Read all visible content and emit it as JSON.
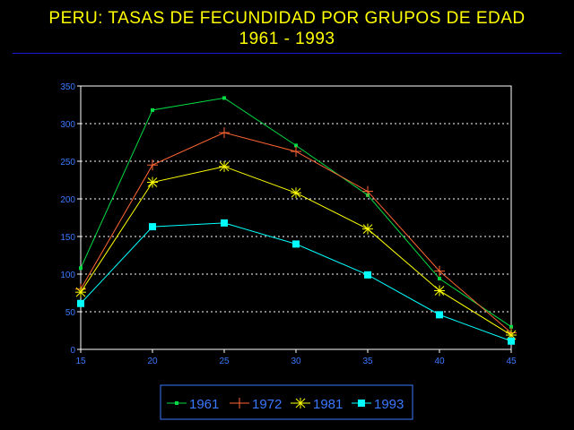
{
  "title": {
    "line1": "PERU: TASAS DE FECUNDIDAD POR GRUPOS DE EDAD",
    "line2": "1961 - 1993"
  },
  "colors": {
    "title": "#ffff00",
    "axis_text": "#3a78ff",
    "separator": "#1a1ad6",
    "grid": "#ffffff"
  },
  "chart_data": {
    "type": "line",
    "title": "PERU: TASAS DE FECUNDIDAD POR GRUPOS DE EDAD 1961 - 1993",
    "xlabel": "",
    "ylabel": "",
    "x": [
      15,
      20,
      25,
      30,
      35,
      40,
      45
    ],
    "xlim": [
      15,
      45
    ],
    "ylim": [
      0,
      350
    ],
    "yticks": [
      0,
      50,
      100,
      150,
      200,
      250,
      300,
      350
    ],
    "grid": "horizontal dotted",
    "legend_position": "bottom-center",
    "series": [
      {
        "name": "1961",
        "color": "#00dd44",
        "marker": "small-square",
        "values": [
          108,
          318,
          334,
          271,
          205,
          94,
          30
        ]
      },
      {
        "name": "1972",
        "color": "#ff6633",
        "marker": "plus",
        "values": [
          80,
          245,
          288,
          263,
          210,
          104,
          22
        ]
      },
      {
        "name": "1981",
        "color": "#ffff00",
        "marker": "asterisk",
        "values": [
          76,
          222,
          243,
          208,
          160,
          78,
          19
        ]
      },
      {
        "name": "1993",
        "color": "#00ffff",
        "marker": "square",
        "values": [
          61,
          163,
          168,
          140,
          99,
          46,
          11
        ]
      }
    ]
  }
}
